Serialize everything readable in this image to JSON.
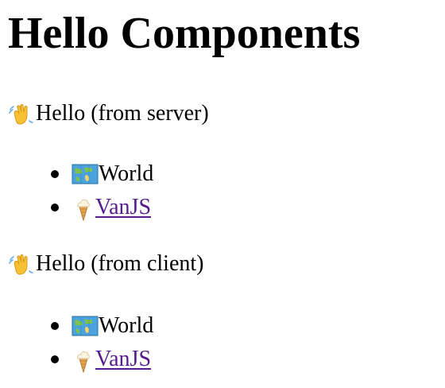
{
  "page": {
    "title": "Hello Components"
  },
  "sections": [
    {
      "id": "server",
      "greeting_icon": "waving-hand-icon",
      "greeting": "Hello (from server)",
      "items": [
        {
          "icon": "world-map-icon",
          "label": "World",
          "is_link": false
        },
        {
          "icon": "ice-cream-icon",
          "label": "VanJS",
          "is_link": true
        }
      ]
    },
    {
      "id": "client",
      "greeting_icon": "waving-hand-icon",
      "greeting": "Hello (from client)",
      "items": [
        {
          "icon": "world-map-icon",
          "label": "World",
          "is_link": false
        },
        {
          "icon": "ice-cream-icon",
          "label": "VanJS",
          "is_link": true
        }
      ]
    }
  ],
  "colors": {
    "text": "#000000",
    "visited_link": "#551a8b",
    "background": "#ffffff"
  }
}
